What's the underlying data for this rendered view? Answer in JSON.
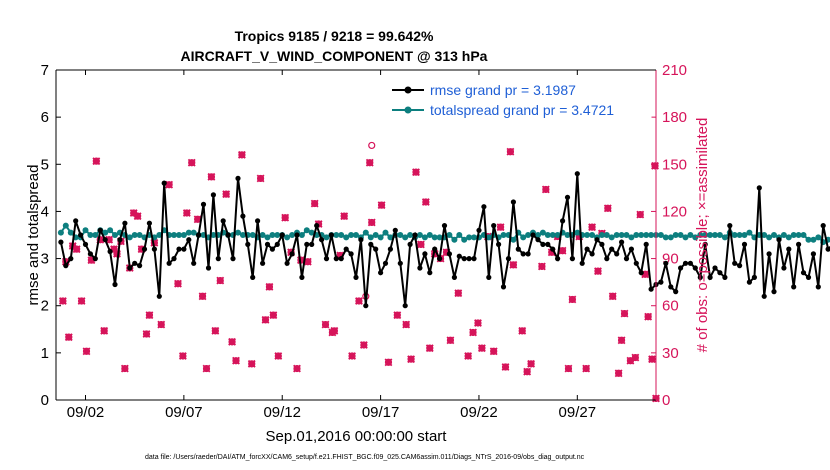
{
  "chart_data": {
    "type": "line",
    "title": "Tropics 9185 / 9218 = 99.642%",
    "subtitle": "AIRCRAFT_V_WIND_COMPONENT @ 313 hPa",
    "xlabel": "Sep.01,2016 00:00:00 start",
    "ylabel_left": "rmse and totalspread",
    "ylabel_right": "# of obs: o=possible; ×=assimilated",
    "xlim": [
      0.5,
      31
    ],
    "ylim_left": [
      0,
      7
    ],
    "ylim_right": [
      0,
      210
    ],
    "x_ticks": [
      2,
      7,
      12,
      17,
      22,
      27
    ],
    "x_tick_labels": [
      "09/02",
      "09/07",
      "09/12",
      "09/17",
      "09/22",
      "09/27"
    ],
    "y_ticks_left": [
      "0",
      "1",
      "2",
      "3",
      "4",
      "5",
      "6",
      "7"
    ],
    "y_ticks_right": [
      "0",
      "30",
      "60",
      "90",
      "120",
      "150",
      "180",
      "210"
    ],
    "legend": [
      "rmse grand pr = 3.1987",
      "totalspread grand pr = 3.4721"
    ],
    "footer": "data file: /Users/raeder/DAI/ATM_forcXX/CAM6_setup/f.e21.FHIST_BGC.f09_025.CAM6assim.011/Diags_NTrS_2016-09/obs_diag_output.nc",
    "colors": {
      "rmse": "#000000",
      "spread": "#0d7f7f",
      "obs": "#d6145a",
      "legend_text": "#1f5fd6"
    },
    "x_start": 0.75,
    "x_step": 0.25,
    "rmse_values": [
      3.35,
      2.85,
      3.0,
      3.8,
      3.5,
      3.3,
      3.1,
      3.0,
      3.6,
      3.4,
      3.15,
      2.45,
      3.4,
      3.75,
      2.8,
      2.9,
      2.85,
      3.2,
      3.75,
      3.2,
      2.2,
      4.6,
      2.9,
      3.0,
      3.2,
      3.2,
      3.4,
      2.9,
      3.5,
      4.15,
      2.8,
      4.35,
      3.0,
      3.8,
      3.5,
      3.0,
      4.7,
      3.9,
      3.3,
      2.6,
      3.8,
      2.9,
      3.3,
      3.2,
      3.3,
      3.5,
      2.9,
      3.1,
      3.5,
      2.6,
      3.3,
      3.3,
      3.7,
      3.4,
      3.0,
      3.5,
      3.0,
      3.0,
      3.2,
      3.1,
      2.6,
      3.4,
      2.0,
      3.3,
      3.2,
      2.7,
      2.9,
      3.2,
      3.6,
      2.9,
      2.0,
      3.3,
      3.5,
      2.8,
      3.1,
      2.7,
      3.2,
      3.0,
      3.7,
      3.1,
      2.6,
      3.05,
      3.0,
      3.0,
      3.0,
      3.6,
      4.1,
      2.6,
      3.7,
      3.3,
      2.4,
      3.0,
      4.2,
      3.2,
      3.1,
      3.1,
      3.5,
      3.4,
      3.3,
      3.3,
      3.2,
      3.0,
      3.8,
      4.3,
      3.0,
      4.8,
      2.9,
      3.2,
      3.1,
      3.4,
      3.3,
      3.0,
      3.2,
      3.1,
      3.35,
      3.0,
      3.2,
      2.9,
      2.7,
      3.3,
      2.35,
      2.45,
      2.5,
      2.9,
      2.4,
      2.3,
      2.8,
      2.9,
      2.9,
      2.8,
      2.6,
      3.3,
      2.6,
      2.8,
      2.7,
      2.6,
      3.7,
      2.9,
      2.85,
      3.3,
      2.5,
      2.6,
      4.5,
      2.2,
      3.1,
      2.3,
      3.4,
      2.8,
      3.2,
      2.4,
      3.3,
      2.7,
      2.6,
      3.1,
      2.4,
      3.7,
      3.2,
      3.3,
      3.3,
      2.8,
      3.0,
      2.95,
      3.0,
      3.0,
      3.05
    ],
    "spread_values": [
      3.55,
      3.7,
      3.55,
      3.45,
      3.45,
      3.6,
      3.5,
      3.5,
      3.6,
      3.55,
      3.6,
      3.5,
      3.55,
      3.5,
      3.45,
      3.5,
      3.5,
      3.45,
      3.5,
      3.45,
      3.5,
      3.6,
      3.5,
      3.5,
      3.5,
      3.5,
      3.55,
      3.55,
      3.5,
      3.5,
      3.45,
      3.5,
      3.5,
      3.55,
      3.5,
      3.5,
      3.55,
      3.5,
      3.5,
      3.5,
      3.45,
      3.5,
      3.45,
      3.5,
      3.5,
      3.5,
      3.45,
      3.5,
      3.55,
      3.5,
      3.6,
      3.55,
      3.5,
      3.5,
      3.45,
      3.5,
      3.5,
      3.5,
      3.45,
      3.5,
      3.5,
      3.45,
      3.55,
      3.45,
      3.5,
      3.45,
      3.55,
      3.45,
      3.5,
      3.5,
      3.45,
      3.5,
      3.45,
      3.5,
      3.45,
      3.5,
      3.45,
      3.45,
      3.45,
      3.5,
      3.4,
      3.5,
      3.4,
      3.45,
      3.45,
      3.45,
      3.5,
      3.45,
      3.5,
      3.45,
      3.5,
      3.5,
      3.4,
      3.55,
      3.45,
      3.5,
      3.55,
      3.5,
      3.55,
      3.5,
      3.5,
      3.5,
      3.55,
      3.5,
      3.5,
      3.55,
      3.5,
      3.5,
      3.5,
      3.45,
      3.5,
      3.5,
      3.45,
      3.5,
      3.5,
      3.5,
      3.45,
      3.5,
      3.5,
      3.5,
      3.5,
      3.5,
      3.5,
      3.45,
      3.45,
      3.5,
      3.5,
      3.45,
      3.5,
      3.45,
      3.5,
      3.5,
      3.5,
      3.5,
      3.5,
      3.45,
      3.55,
      3.5,
      3.5,
      3.5,
      3.55,
      3.45,
      3.5,
      3.5,
      3.45,
      3.5,
      3.45,
      3.5,
      3.45,
      3.5,
      3.5,
      3.5,
      3.4,
      3.4,
      3.45,
      3.35,
      3.4,
      3.35,
      3.45,
      3.4,
      3.45,
      3.4,
      3.45,
      3.4
    ],
    "obs_assim": [
      [
        0.85,
        63
      ],
      [
        1.0,
        88
      ],
      [
        1.15,
        40
      ],
      [
        1.35,
        98
      ],
      [
        1.55,
        96
      ],
      [
        1.8,
        63
      ],
      [
        2.05,
        31
      ],
      [
        2.3,
        89
      ],
      [
        2.55,
        152
      ],
      [
        2.75,
        102
      ],
      [
        2.95,
        44
      ],
      [
        3.2,
        102
      ],
      [
        3.45,
        96
      ],
      [
        3.6,
        93
      ],
      [
        3.8,
        101
      ],
      [
        4.0,
        20
      ],
      [
        4.25,
        84
      ],
      [
        4.45,
        119
      ],
      [
        4.65,
        117
      ],
      [
        4.85,
        96
      ],
      [
        5.1,
        42
      ],
      [
        5.25,
        54
      ],
      [
        5.5,
        100
      ],
      [
        5.85,
        48
      ],
      [
        6.25,
        137
      ],
      [
        6.7,
        74
      ],
      [
        6.95,
        28
      ],
      [
        7.15,
        119
      ],
      [
        7.4,
        151
      ],
      [
        7.7,
        115
      ],
      [
        7.95,
        66
      ],
      [
        8.15,
        20
      ],
      [
        8.4,
        142
      ],
      [
        8.6,
        44
      ],
      [
        8.85,
        76
      ],
      [
        9.15,
        131
      ],
      [
        9.45,
        37
      ],
      [
        9.65,
        25
      ],
      [
        9.95,
        156
      ],
      [
        10.45,
        23
      ],
      [
        10.9,
        141
      ],
      [
        11.15,
        51
      ],
      [
        11.35,
        72
      ],
      [
        11.55,
        54
      ],
      [
        11.8,
        28
      ],
      [
        12.15,
        116
      ],
      [
        12.45,
        94
      ],
      [
        12.75,
        20
      ],
      [
        12.95,
        89
      ],
      [
        13.3,
        88
      ],
      [
        13.65,
        125
      ],
      [
        13.85,
        112
      ],
      [
        14.2,
        48
      ],
      [
        14.55,
        43
      ],
      [
        14.65,
        44
      ],
      [
        14.95,
        92
      ],
      [
        15.15,
        117
      ],
      [
        15.55,
        28
      ],
      [
        15.9,
        63
      ],
      [
        16.15,
        35
      ],
      [
        16.45,
        151
      ],
      [
        16.55,
        113
      ],
      [
        17.05,
        124
      ],
      [
        17.4,
        24
      ],
      [
        17.85,
        54
      ],
      [
        18.3,
        48
      ],
      [
        18.55,
        26
      ],
      [
        18.8,
        145
      ],
      [
        19.05,
        99
      ],
      [
        19.3,
        126
      ],
      [
        19.5,
        33
      ],
      [
        19.75,
        93
      ],
      [
        20.05,
        90
      ],
      [
        20.35,
        94
      ],
      [
        20.55,
        38
      ],
      [
        20.95,
        68
      ],
      [
        21.45,
        28
      ],
      [
        21.7,
        43
      ],
      [
        21.95,
        49
      ],
      [
        22.15,
        33
      ],
      [
        22.45,
        104
      ],
      [
        22.75,
        31
      ],
      [
        23.1,
        110
      ],
      [
        23.35,
        21
      ],
      [
        23.6,
        158
      ],
      [
        23.75,
        86
      ],
      [
        24.2,
        44
      ],
      [
        24.45,
        18
      ],
      [
        24.65,
        23
      ],
      [
        25.2,
        85
      ],
      [
        25.4,
        134
      ],
      [
        25.7,
        94
      ],
      [
        26.0,
        104
      ],
      [
        26.25,
        95
      ],
      [
        26.55,
        20
      ],
      [
        26.75,
        64
      ],
      [
        27.1,
        104
      ],
      [
        27.45,
        20
      ],
      [
        27.75,
        110
      ],
      [
        28.05,
        82
      ],
      [
        28.25,
        106
      ],
      [
        28.55,
        122
      ],
      [
        28.8,
        66
      ],
      [
        29.1,
        17
      ],
      [
        29.25,
        38
      ],
      [
        29.4,
        55
      ],
      [
        29.7,
        25
      ],
      [
        29.95,
        27
      ],
      [
        30.2,
        118
      ],
      [
        30.45,
        80
      ],
      [
        30.6,
        53
      ],
      [
        30.8,
        26
      ],
      [
        30.95,
        149
      ],
      [
        31.0,
        1
      ]
    ],
    "obs_possible_extra": [
      [
        16.55,
        162
      ],
      [
        16.25,
        66
      ]
    ]
  }
}
